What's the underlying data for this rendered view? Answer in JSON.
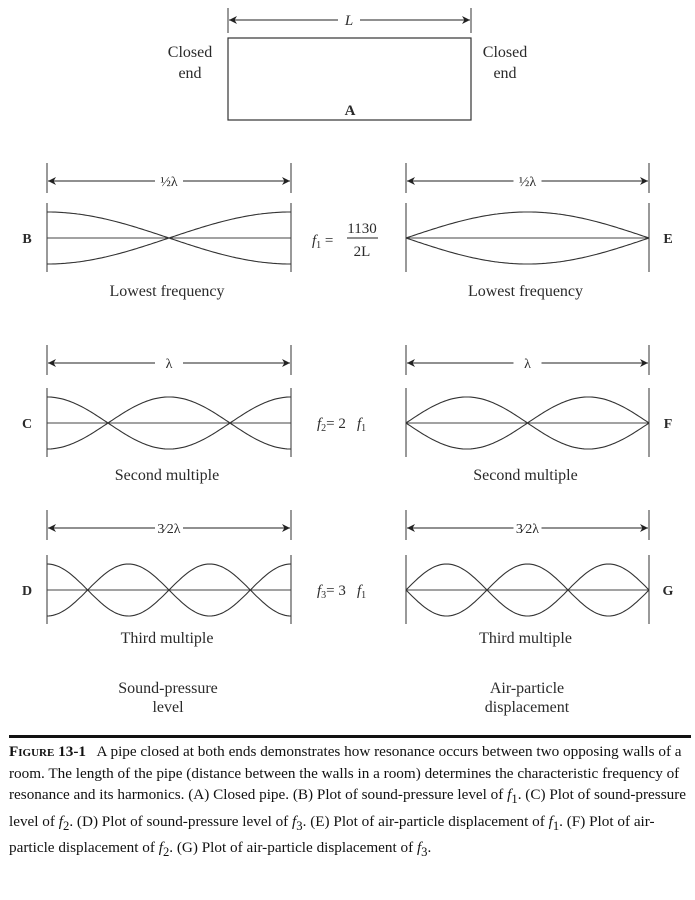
{
  "pipe": {
    "dimension": "L",
    "left_end": [
      "Closed",
      "end"
    ],
    "right_end": [
      "Closed",
      "end"
    ],
    "label": "A"
  },
  "panels": [
    {
      "label": "B",
      "span": "½λ",
      "quantity": "pressure",
      "harmonic": 1,
      "caption": "Lowest frequency"
    },
    {
      "label": "C",
      "span": "λ",
      "quantity": "pressure",
      "harmonic": 2,
      "caption": "Second multiple"
    },
    {
      "label": "D",
      "span": "3⁄2λ",
      "quantity": "pressure",
      "harmonic": 3,
      "caption": "Third multiple"
    },
    {
      "label": "E",
      "span": "½λ",
      "quantity": "displacement",
      "harmonic": 1,
      "caption": "Lowest frequency"
    },
    {
      "label": "F",
      "span": "λ",
      "quantity": "displacement",
      "harmonic": 2,
      "caption": "Second multiple"
    },
    {
      "label": "G",
      "span": "3⁄2λ",
      "quantity": "displacement",
      "harmonic": 3,
      "caption": "Third multiple"
    }
  ],
  "formulas": {
    "f1_num": "1130",
    "f1_den": "2L",
    "f2": "= 2",
    "f3": "= 3"
  },
  "column_titles": {
    "left": [
      "Sound-pressure",
      "level"
    ],
    "right": [
      "Air-particle",
      "displacement"
    ]
  },
  "caption": {
    "figure": "Figure 13-1",
    "p1": "A pipe closed at both ends demonstrates how resonance occurs between two opposing walls of a room. The length of the pipe (distance between the walls in a room) determines the characteristic frequency of resonance and its harmonics. (A) Closed pipe. (B) Plot of sound-pressure level of ",
    "p2": ". (C) Plot of sound-pressure level of ",
    "p3": ". (D) Plot of sound-pressure level of ",
    "p4": ". (E) Plot of air-particle displacement of ",
    "p5": ". (F) Plot of air-particle displacement of ",
    "p6": ". (G) Plot of air-particle displacement of ",
    "p7": "."
  }
}
